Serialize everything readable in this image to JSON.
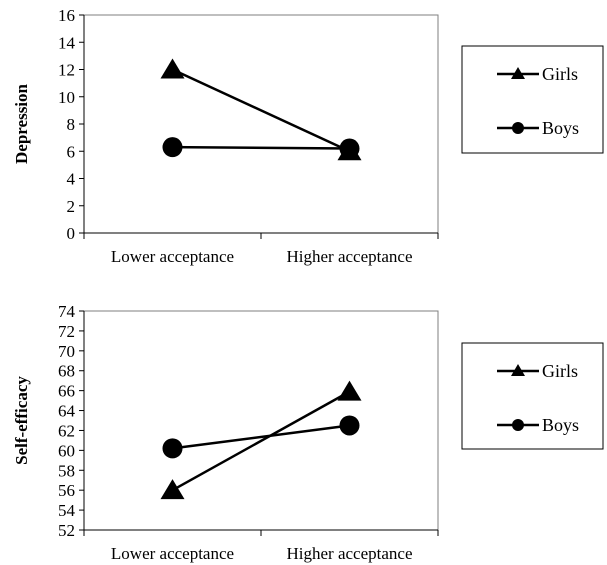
{
  "chart_data": [
    {
      "type": "line",
      "title": "",
      "xlabel": "",
      "ylabel": "Depression",
      "categories": [
        "Lower acceptance",
        "Higher acceptance"
      ],
      "ylim": [
        0,
        16
      ],
      "yticks": [
        0,
        2,
        4,
        6,
        8,
        10,
        12,
        14,
        16
      ],
      "legend_position": "right",
      "grid": false,
      "series": [
        {
          "name": "Girls",
          "marker": "triangle",
          "values": [
            12,
            6
          ]
        },
        {
          "name": "Boys",
          "marker": "circle",
          "values": [
            6.3,
            6.2
          ]
        }
      ]
    },
    {
      "type": "line",
      "title": "",
      "xlabel": "",
      "ylabel": "Self-efficacy",
      "categories": [
        "Lower acceptance",
        "Higher acceptance"
      ],
      "ylim": [
        52,
        74
      ],
      "yticks": [
        52,
        54,
        56,
        58,
        60,
        62,
        64,
        66,
        68,
        70,
        72,
        74
      ],
      "legend_position": "right",
      "grid": false,
      "series": [
        {
          "name": "Girls",
          "marker": "triangle",
          "values": [
            56,
            65.9
          ]
        },
        {
          "name": "Boys",
          "marker": "circle",
          "values": [
            60.2,
            62.5
          ]
        }
      ]
    }
  ]
}
